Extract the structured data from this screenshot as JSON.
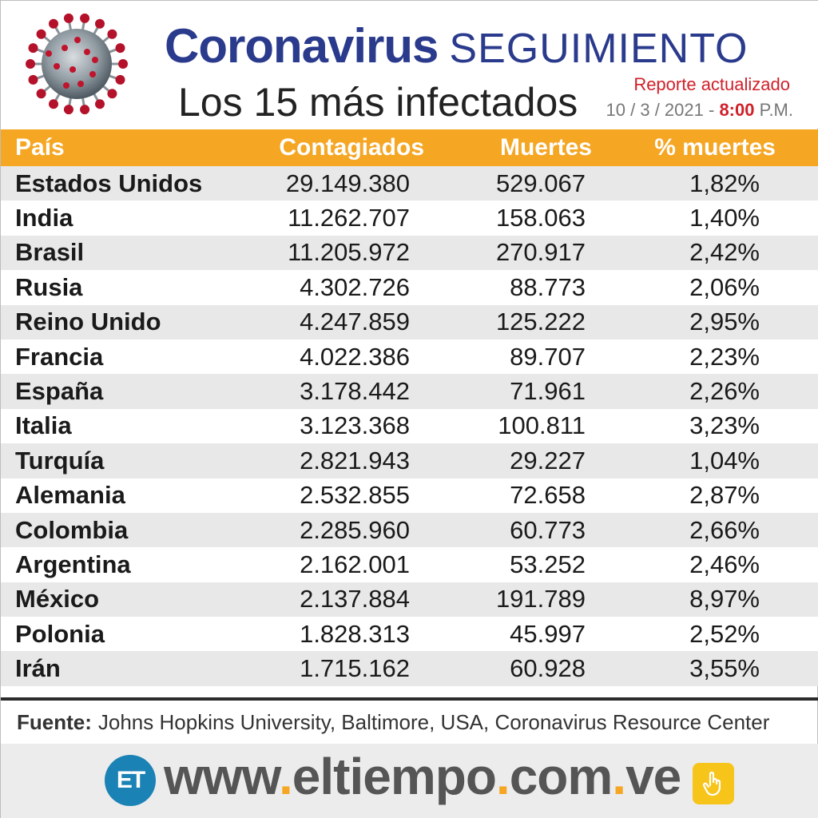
{
  "header": {
    "title_bold": "Coronavirus",
    "title_light": "SEGUIMIENTO",
    "subtitle": "Los 15 más infectados",
    "report_label": "Reporte actualizado",
    "report_date": "10 / 3 / 2021 -",
    "report_time": "8:00",
    "report_ampm": "P.M."
  },
  "table": {
    "headers": {
      "country": "País",
      "cases": "Contagiados",
      "deaths": "Muertes",
      "pct": "% muertes"
    },
    "rows": [
      {
        "country": "Estados Unidos",
        "cases": "29.149.380",
        "deaths": "529.067",
        "pct": "1,82%"
      },
      {
        "country": "India",
        "cases": "11.262.707",
        "deaths": "158.063",
        "pct": "1,40%"
      },
      {
        "country": "Brasil",
        "cases": "11.205.972",
        "deaths": "270.917",
        "pct": "2,42%"
      },
      {
        "country": "Rusia",
        "cases": "4.302.726",
        "deaths": "88.773",
        "pct": "2,06%"
      },
      {
        "country": "Reino Unido",
        "cases": "4.247.859",
        "deaths": "125.222",
        "pct": "2,95%"
      },
      {
        "country": "Francia",
        "cases": "4.022.386",
        "deaths": "89.707",
        "pct": "2,23%"
      },
      {
        "country": "España",
        "cases": "3.178.442",
        "deaths": "71.961",
        "pct": "2,26%"
      },
      {
        "country": "Italia",
        "cases": "3.123.368",
        "deaths": "100.811",
        "pct": "3,23%"
      },
      {
        "country": "Turquía",
        "cases": "2.821.943",
        "deaths": "29.227",
        "pct": "1,04%"
      },
      {
        "country": "Alemania",
        "cases": "2.532.855",
        "deaths": "72.658",
        "pct": "2,87%"
      },
      {
        "country": "Colombia",
        "cases": "2.285.960",
        "deaths": "60.773",
        "pct": "2,66%"
      },
      {
        "country": "Argentina",
        "cases": "2.162.001",
        "deaths": "53.252",
        "pct": "2,46%"
      },
      {
        "country": "México",
        "cases": "2.137.884",
        "deaths": "191.789",
        "pct": "8,97%"
      },
      {
        "country": "Polonia",
        "cases": "1.828.313",
        "deaths": "45.997",
        "pct": "2,52%"
      },
      {
        "country": "Irán",
        "cases": "1.715.162",
        "deaths": "60.928",
        "pct": "3,55%"
      }
    ]
  },
  "footer": {
    "source_label": "Fuente:",
    "source_text": "Johns Hopkins University, Baltimore, USA, Coronavirus Resource Center",
    "logo_text": "ET",
    "url_parts": [
      "www",
      ".",
      "eltiempo",
      ".",
      "com",
      ".",
      "ve"
    ]
  },
  "icons": {
    "virus": "coronavirus-icon",
    "hand": "tap-hand-icon"
  },
  "colors": {
    "title_blue": "#2a3a8c",
    "accent_orange": "#f5a623",
    "report_red": "#d0202a",
    "logo_blue": "#1b82b5"
  }
}
